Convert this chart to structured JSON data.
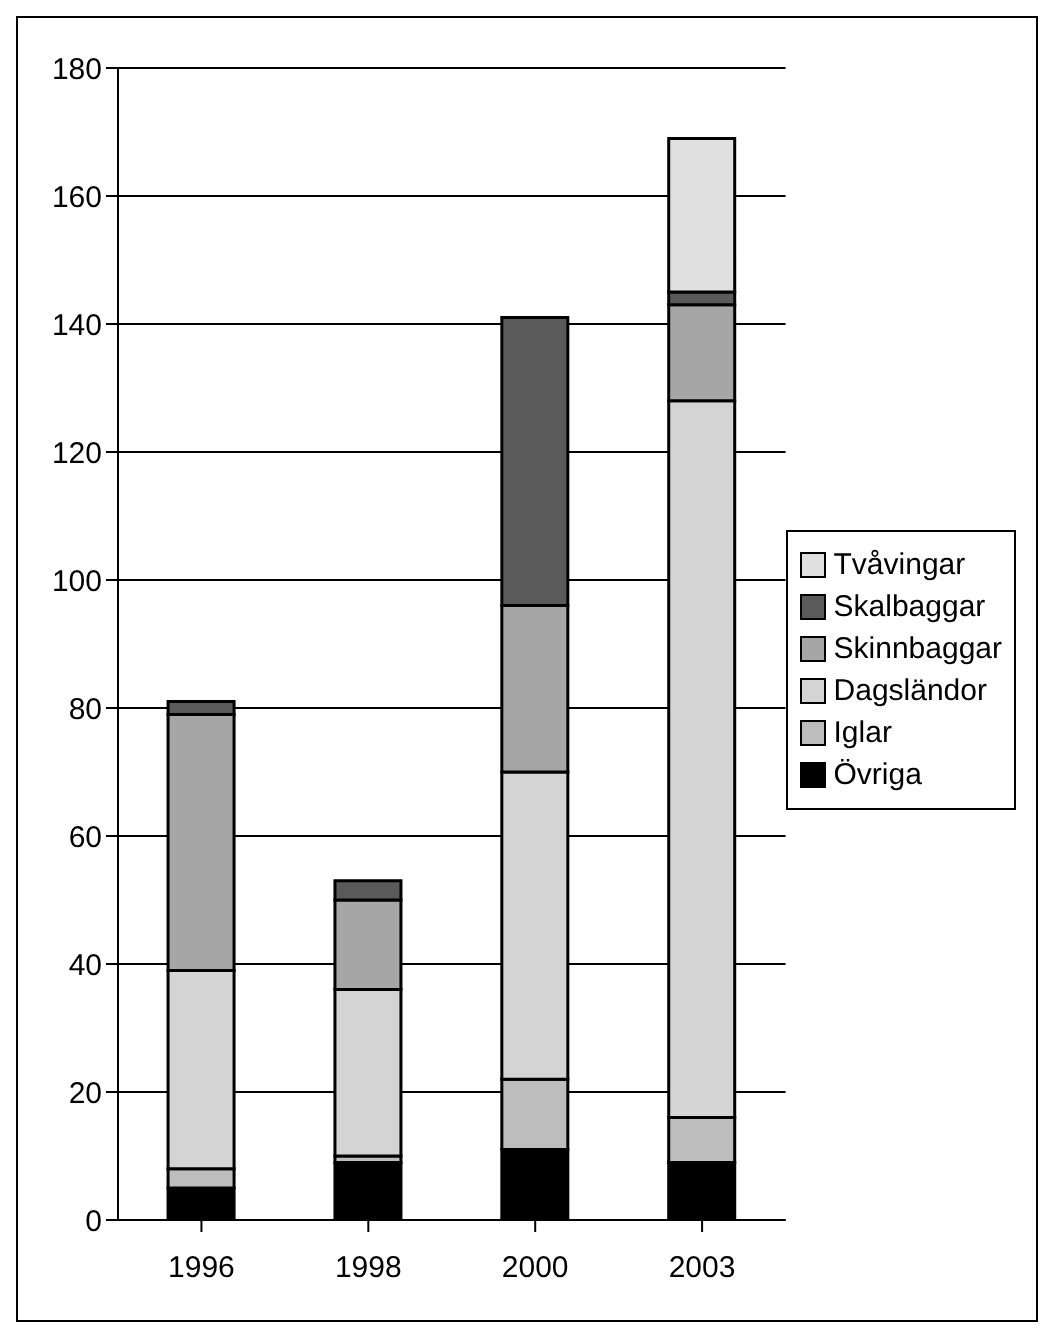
{
  "chart_data": {
    "type": "bar",
    "stacked": true,
    "categories": [
      "1996",
      "1998",
      "2000",
      "2003"
    ],
    "series": [
      {
        "name": "Övriga",
        "color": "#000000",
        "values": [
          5,
          9,
          11,
          9
        ]
      },
      {
        "name": "Iglar",
        "color": "#bdbdbd",
        "values": [
          3,
          1,
          11,
          7
        ]
      },
      {
        "name": "Dagsländor",
        "color": "#d4d4d4",
        "values": [
          31,
          26,
          48,
          112
        ]
      },
      {
        "name": "Skinnbaggar",
        "color": "#a6a6a6",
        "values": [
          40,
          14,
          26,
          15
        ]
      },
      {
        "name": "Skalbaggar",
        "color": "#5a5a5a",
        "values": [
          2,
          3,
          45,
          2
        ]
      },
      {
        "name": "Tvåvingar",
        "color": "#e0e0e0",
        "values": [
          0,
          0,
          0,
          24
        ]
      }
    ],
    "ylim": [
      0,
      180
    ],
    "yticks": [
      0,
      20,
      40,
      60,
      80,
      100,
      120,
      140,
      160,
      180
    ],
    "grid": "y",
    "legend": "right"
  }
}
